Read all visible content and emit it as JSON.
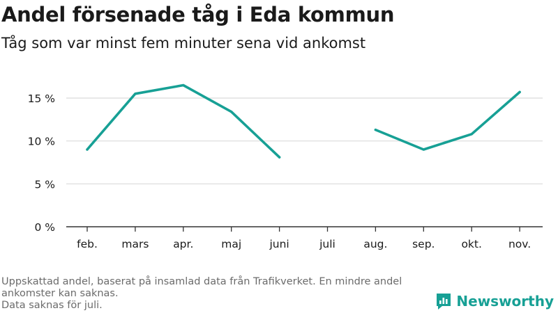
{
  "title": "Andel försenade tåg i Eda kommun",
  "subtitle": "Tåg som var minst fem minuter sena vid ankomst",
  "footnote": {
    "line1": "Uppskattad andel, baserat på insamlad data från Trafikverket. En mindre andel ankomster kan saknas.",
    "line2": "Data saknas för juli."
  },
  "brand": {
    "name": "Newsworthy",
    "icon": "newsworthy-logo-icon",
    "color": "#17a095"
  },
  "colors": {
    "line": "#17a095",
    "grid": "#d9d9d9",
    "axis": "#333333"
  },
  "chart_data": {
    "type": "line",
    "title": "Andel försenade tåg i Eda kommun",
    "subtitle": "Tåg som var minst fem minuter sena vid ankomst",
    "categories": [
      "feb.",
      "mars",
      "apr.",
      "maj",
      "juni",
      "juli",
      "aug.",
      "sep.",
      "okt.",
      "nov."
    ],
    "series": [
      {
        "values": [
          9.0,
          15.5,
          16.5,
          13.4,
          8.1,
          null,
          11.3,
          9.0,
          10.8,
          15.7
        ]
      }
    ],
    "yticks": [
      "0 %",
      "5 %",
      "10 %",
      "15 %"
    ],
    "ytick_values": [
      0,
      5,
      10,
      15
    ],
    "ylim": [
      0,
      17
    ],
    "grid": true,
    "legend": "none"
  }
}
